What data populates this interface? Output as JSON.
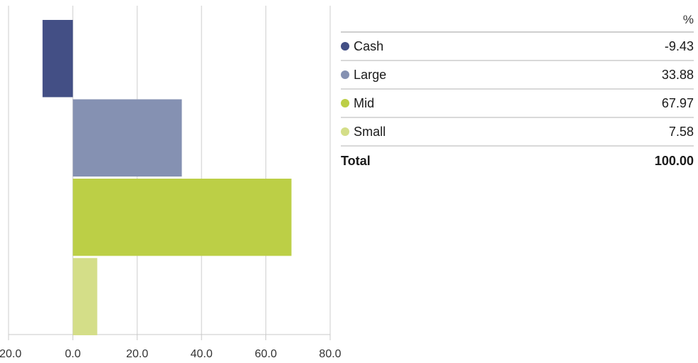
{
  "chart_data": {
    "type": "bar",
    "orientation": "horizontal",
    "categories": [
      "Cash",
      "Large",
      "Mid",
      "Small"
    ],
    "values": [
      -9.43,
      33.88,
      67.97,
      7.58
    ],
    "colors": [
      "#434f85",
      "#8591b2",
      "#bccf46",
      "#d4de88"
    ],
    "xlim": [
      -20,
      80
    ],
    "xticks": [
      "-20.0",
      "0.0",
      "20.0",
      "40.0",
      "60.0",
      "80.0"
    ],
    "grid": true,
    "legend_placement": "right"
  },
  "table": {
    "header_unit": "%",
    "rows": [
      {
        "label": "Cash",
        "value": "-9.43",
        "color": "#434f85"
      },
      {
        "label": "Large",
        "value": "33.88",
        "color": "#8591b2"
      },
      {
        "label": "Mid",
        "value": "67.97",
        "color": "#bccf46"
      },
      {
        "label": "Small",
        "value": "7.58",
        "color": "#d4de88"
      }
    ],
    "total_label": "Total",
    "total_value": "100.00"
  }
}
